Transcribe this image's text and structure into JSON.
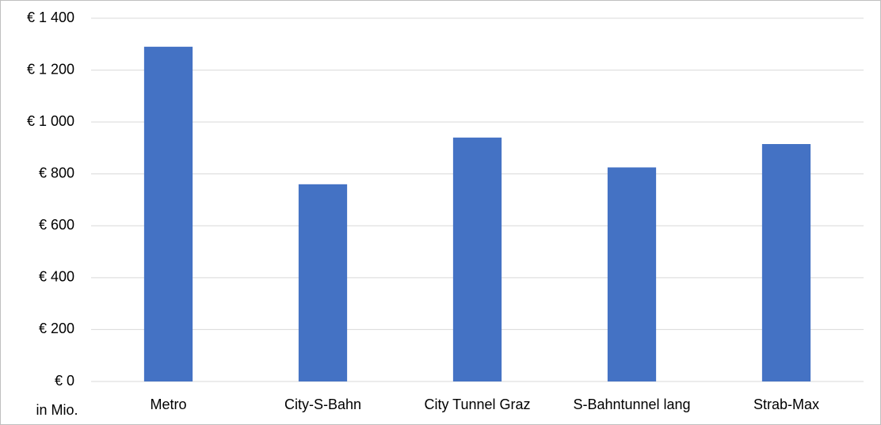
{
  "chart_data": {
    "type": "bar",
    "categories": [
      "Metro",
      "City-S-Bahn",
      "City Tunnel Graz",
      "S-Bahntunnel lang",
      "Strab-Max"
    ],
    "values": [
      1290,
      760,
      940,
      825,
      915
    ],
    "color": "#4472c4",
    "y_label": "in Mio.",
    "ylim": [
      0,
      1400
    ],
    "yticks": [
      {
        "value": 0,
        "label": "€ 0"
      },
      {
        "value": 200,
        "label": "€ 200"
      },
      {
        "value": 400,
        "label": "€ 400"
      },
      {
        "value": 600,
        "label": "€ 600"
      },
      {
        "value": 800,
        "label": "€ 800"
      },
      {
        "value": 1000,
        "label": "€ 1 000"
      },
      {
        "value": 1200,
        "label": "€ 1 200"
      },
      {
        "value": 1400,
        "label": "€ 1 400"
      }
    ],
    "grid": true
  }
}
